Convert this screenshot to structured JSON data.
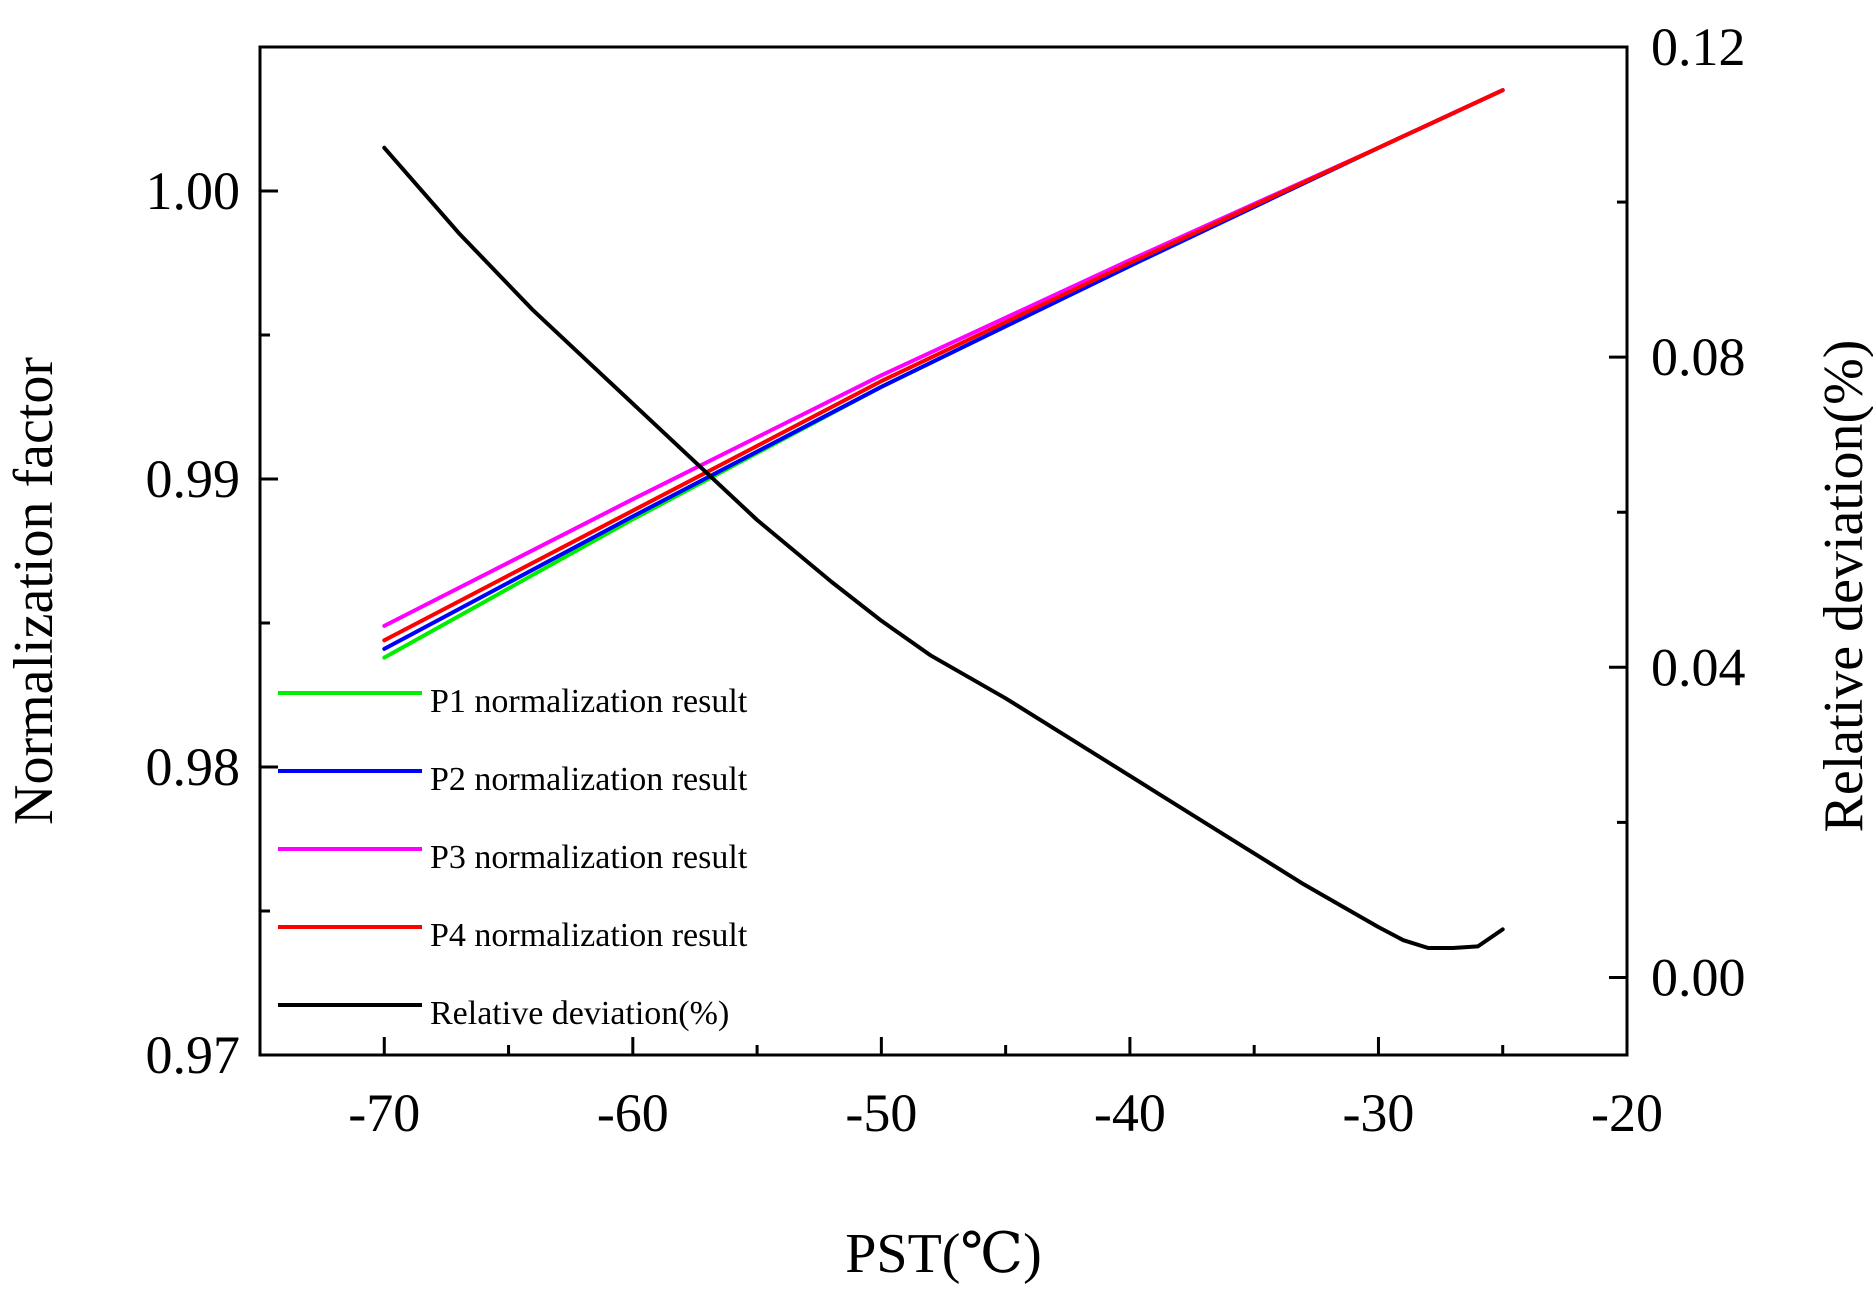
{
  "chart_data": {
    "type": "line",
    "title": "",
    "xlabel": "PST(℃)",
    "ylabel_left": "Normalization factor",
    "ylabel_right": "Relative deviation(%)",
    "xlim": [
      -75,
      -20
    ],
    "ylim_left": [
      0.97,
      1.005
    ],
    "ylim_right": [
      -0.01,
      0.12
    ],
    "x_ticks": [
      -70,
      -60,
      -50,
      -40,
      -30,
      -20
    ],
    "x_tick_labels": [
      "-70",
      "-60",
      "-50",
      "-40",
      "-30",
      "-20"
    ],
    "y_left_ticks": [
      0.97,
      0.98,
      0.99,
      1.0
    ],
    "y_left_tick_labels": [
      "0.97",
      "0.98",
      "0.99",
      "1.00"
    ],
    "y_right_ticks": [
      0.0,
      0.04,
      0.08,
      0.12
    ],
    "y_right_tick_labels": [
      "0.00",
      "0.04",
      "0.08",
      "0.12"
    ],
    "grid": false,
    "legend_position": "bottom-left",
    "series": [
      {
        "name": "P1 normalization result",
        "axis": "left",
        "color": "#00ee00",
        "x": [
          -70,
          -60,
          -50,
          -40,
          -30,
          -25
        ],
        "values": [
          0.9838,
          0.9886,
          0.9932,
          0.9974,
          1.0015,
          1.0035
        ]
      },
      {
        "name": "P2 normalization result",
        "axis": "left",
        "color": "#0000ff",
        "x": [
          -70,
          -60,
          -50,
          -40,
          -30,
          -25
        ],
        "values": [
          0.9841,
          0.9887,
          0.9932,
          0.9974,
          1.0015,
          1.0035
        ]
      },
      {
        "name": "P3 normalization result",
        "axis": "left",
        "color": "#ff00ff",
        "x": [
          -70,
          -60,
          -50,
          -40,
          -30,
          -25
        ],
        "values": [
          0.9849,
          0.9893,
          0.9936,
          0.9976,
          1.0015,
          1.0035
        ]
      },
      {
        "name": "P4 normalization result",
        "axis": "left",
        "color": "#ff0000",
        "x": [
          -70,
          -60,
          -50,
          -40,
          -30,
          -25
        ],
        "values": [
          0.9844,
          0.9889,
          0.9934,
          0.9975,
          1.0015,
          1.0035
        ]
      },
      {
        "name": "Relative deviation(%)",
        "axis": "right",
        "color": "#000000",
        "x": [
          -70,
          -67,
          -64,
          -61,
          -58,
          -55,
          -52,
          -50,
          -48,
          -45,
          -42,
          -39,
          -36,
          -33,
          -30,
          -29,
          -28,
          -27,
          -26,
          -25
        ],
        "values": [
          0.107,
          0.096,
          0.086,
          0.077,
          0.068,
          0.059,
          0.051,
          0.046,
          0.0415,
          0.036,
          0.03,
          0.024,
          0.018,
          0.012,
          0.0065,
          0.0048,
          0.0038,
          0.0038,
          0.004,
          0.0062
        ]
      }
    ]
  }
}
